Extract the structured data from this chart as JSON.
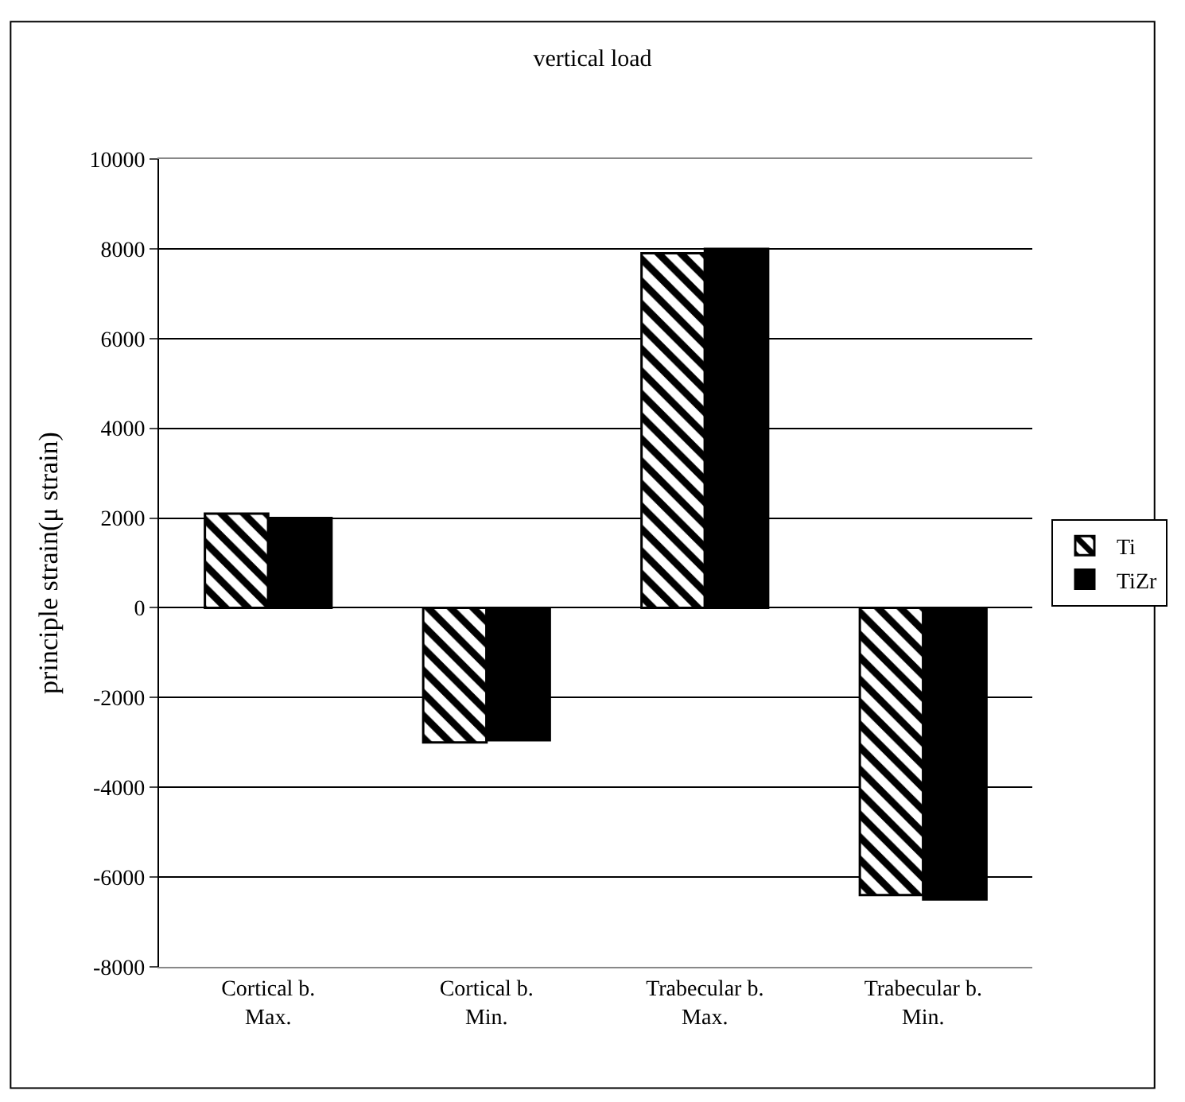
{
  "chart_data": {
    "type": "bar",
    "title": "vertical load",
    "ylabel": "principle strain(μ strain)",
    "categories": [
      "Cortical b.\nMax.",
      "Cortical b.\nMin.",
      "Trabecular b.\nMax.",
      "Trabecular b.\nMin."
    ],
    "series": [
      {
        "name": "Ti",
        "color": "#000000",
        "values": [
          2100,
          -3000,
          7900,
          -6400
        ]
      },
      {
        "name": "TiZr",
        "color": "#000000",
        "values": [
          2000,
          -2950,
          8000,
          -6500
        ]
      }
    ],
    "ylim": [
      -8000,
      10000
    ],
    "yticks": [
      -8000,
      -6000,
      -4000,
      -2000,
      0,
      2000,
      4000,
      6000,
      8000,
      10000
    ],
    "grid": "y",
    "legend": "right"
  }
}
